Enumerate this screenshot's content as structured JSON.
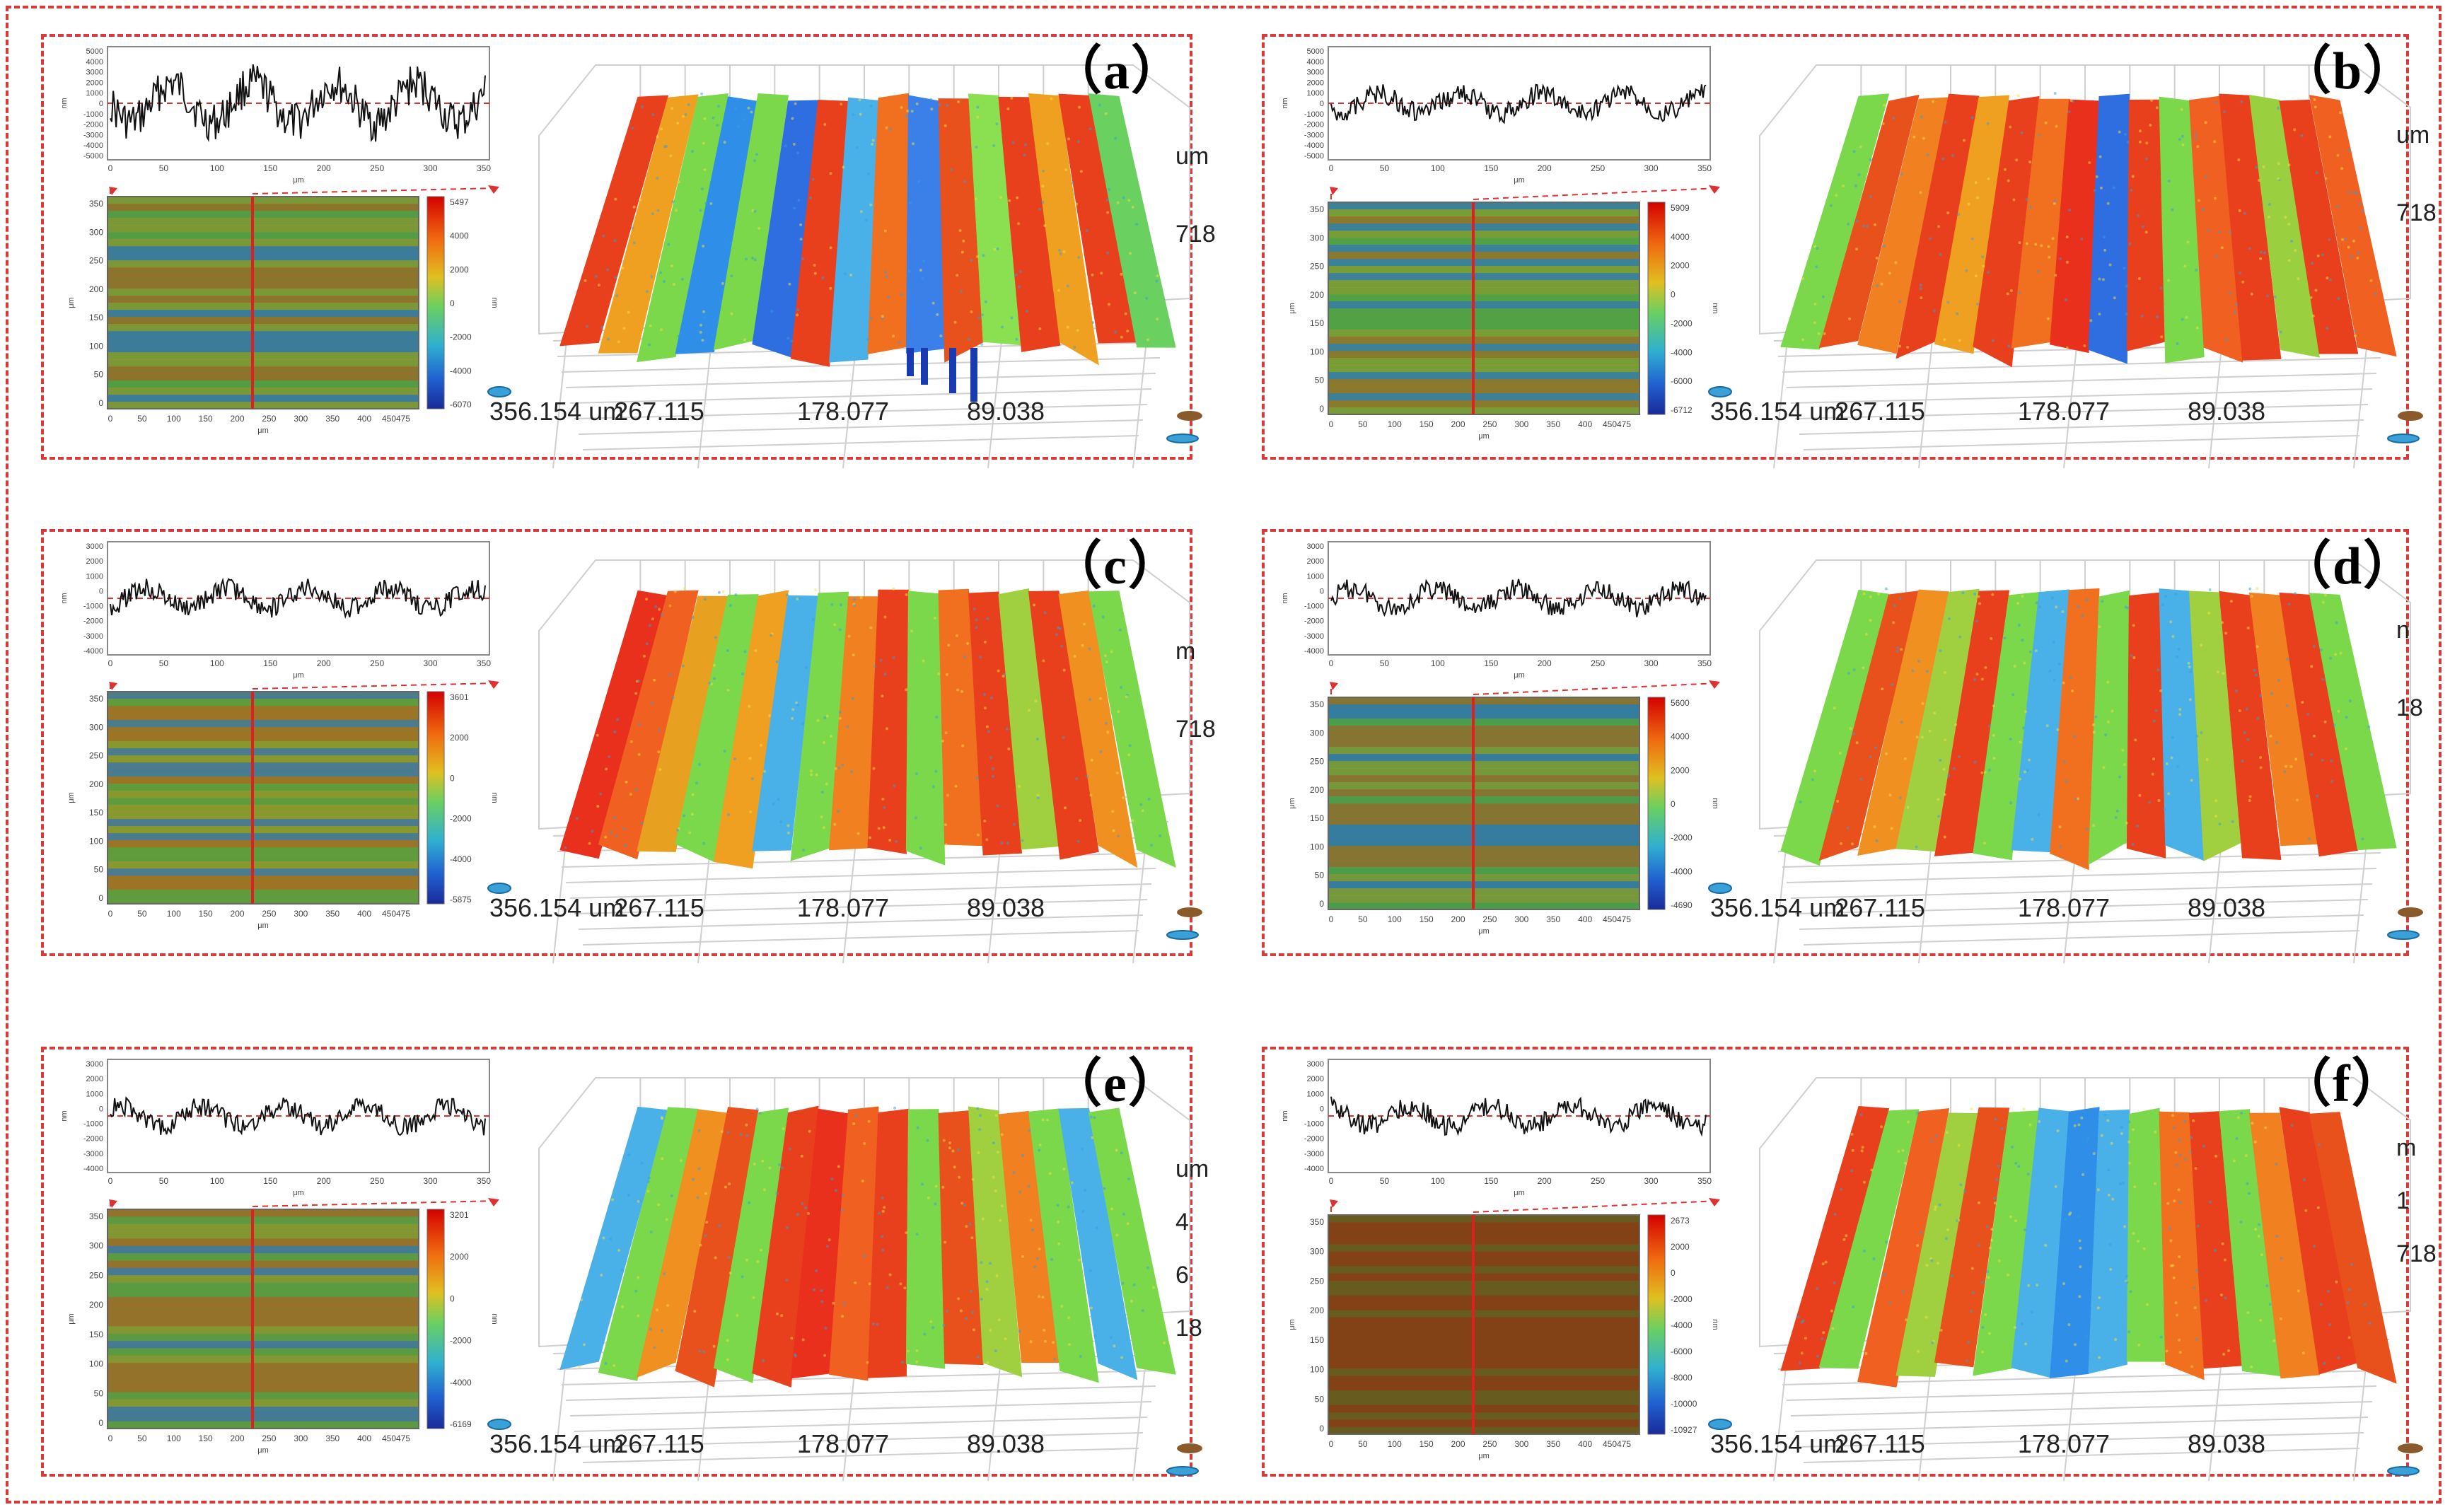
{
  "panels": [
    {
      "label": "（a）",
      "profile_yticks": [
        "5000",
        "4000",
        "3000",
        "2000",
        "1000",
        "0",
        "-1000",
        "-2000",
        "-3000",
        "-4000",
        "-5000"
      ],
      "profile_xticks": [
        "0",
        "50",
        "100",
        "150",
        "200",
        "250",
        "300",
        "350"
      ],
      "map_yticks": [
        "350",
        "300",
        "250",
        "200",
        "150",
        "100",
        "50",
        "0"
      ],
      "map_xticks": [
        "0",
        "50",
        "100",
        "150",
        "200",
        "250",
        "300",
        "350",
        "400",
        "450475"
      ],
      "colorbar": [
        "5497",
        "4000",
        "2000",
        "0",
        "-2000",
        "-4000",
        "-6070"
      ],
      "axis3d": [
        "356.154 um",
        "267.115",
        "178.077",
        "89.038"
      ],
      "side_labels": [
        "um",
        "718"
      ],
      "um_label": "μm",
      "nm_label": "nm"
    },
    {
      "label": "（b）",
      "profile_yticks": [
        "5000",
        "4000",
        "3000",
        "2000",
        "1000",
        "0",
        "-1000",
        "-2000",
        "-3000",
        "-4000",
        "-5000"
      ],
      "profile_xticks": [
        "0",
        "50",
        "100",
        "150",
        "200",
        "250",
        "300",
        "350"
      ],
      "map_yticks": [
        "350",
        "300",
        "250",
        "200",
        "150",
        "100",
        "50",
        "0"
      ],
      "map_xticks": [
        "0",
        "50",
        "100",
        "150",
        "200",
        "250",
        "300",
        "350",
        "400",
        "450475"
      ],
      "colorbar": [
        "5909",
        "4000",
        "2000",
        "0",
        "-2000",
        "-4000",
        "-6000",
        "-6712"
      ],
      "axis3d": [
        "356.154 um",
        "267.115",
        "178.077",
        "89.038"
      ],
      "side_labels": [
        "um",
        "718"
      ],
      "um_label": "μm",
      "nm_label": "nm"
    },
    {
      "label": "（c）",
      "profile_yticks": [
        "3000",
        "2000",
        "1000",
        "0",
        "-1000",
        "-2000",
        "-3000",
        "-4000"
      ],
      "profile_xticks": [
        "0",
        "50",
        "100",
        "150",
        "200",
        "250",
        "300",
        "350"
      ],
      "map_yticks": [
        "350",
        "300",
        "250",
        "200",
        "150",
        "100",
        "50",
        "0"
      ],
      "map_xticks": [
        "0",
        "50",
        "100",
        "150",
        "200",
        "250",
        "300",
        "350",
        "400",
        "450475"
      ],
      "colorbar": [
        "3601",
        "2000",
        "0",
        "-2000",
        "-4000",
        "-5875"
      ],
      "axis3d": [
        "356.154 um",
        "267.115",
        "178.077",
        "89.038"
      ],
      "side_labels": [
        "m",
        "718"
      ],
      "um_label": "μm",
      "nm_label": "nm"
    },
    {
      "label": "（d）",
      "profile_yticks": [
        "3000",
        "2000",
        "1000",
        "0",
        "-1000",
        "-2000",
        "-3000",
        "-4000"
      ],
      "profile_xticks": [
        "0",
        "50",
        "100",
        "150",
        "200",
        "250",
        "300",
        "350"
      ],
      "map_yticks": [
        "350",
        "300",
        "250",
        "200",
        "150",
        "100",
        "50",
        "0"
      ],
      "map_xticks": [
        "0",
        "50",
        "100",
        "150",
        "200",
        "250",
        "300",
        "350",
        "400",
        "450475"
      ],
      "colorbar": [
        "5600",
        "4000",
        "2000",
        "0",
        "-2000",
        "-4000",
        "-4690"
      ],
      "axis3d": [
        "356.154 um",
        "267.115",
        "178.077",
        "89.038"
      ],
      "side_labels": [
        "n",
        "18"
      ],
      "um_label": "μm",
      "nm_label": "nm"
    },
    {
      "label": "（e）",
      "profile_yticks": [
        "3000",
        "2000",
        "1000",
        "0",
        "-1000",
        "-2000",
        "-3000",
        "-4000"
      ],
      "profile_xticks": [
        "0",
        "50",
        "100",
        "150",
        "200",
        "250",
        "300",
        "350"
      ],
      "map_yticks": [
        "350",
        "300",
        "250",
        "200",
        "150",
        "100",
        "50",
        "0"
      ],
      "map_xticks": [
        "0",
        "50",
        "100",
        "150",
        "200",
        "250",
        "300",
        "350",
        "400",
        "450475"
      ],
      "colorbar": [
        "3201",
        "2000",
        "0",
        "-2000",
        "-4000",
        "-6169"
      ],
      "axis3d": [
        "356.154 um",
        "267.115",
        "178.077",
        "89.038"
      ],
      "side_labels": [
        "um",
        "4",
        "6",
        "18"
      ],
      "um_label": "μm",
      "nm_label": "nm"
    },
    {
      "label": "（f）",
      "profile_yticks": [
        "3000",
        "2000",
        "1000",
        "0",
        "-1000",
        "-2000",
        "-3000",
        "-4000"
      ],
      "profile_xticks": [
        "0",
        "50",
        "100",
        "150",
        "200",
        "250",
        "300",
        "350"
      ],
      "map_yticks": [
        "350",
        "300",
        "250",
        "200",
        "150",
        "100",
        "50",
        "0"
      ],
      "map_xticks": [
        "0",
        "50",
        "100",
        "150",
        "200",
        "250",
        "300",
        "350",
        "400",
        "450475"
      ],
      "colorbar": [
        "2673",
        "2000",
        "0",
        "-2000",
        "-4000",
        "-6000",
        "-8000",
        "-10000",
        "-10927"
      ],
      "axis3d": [
        "356.154 um",
        "267.115",
        "178.077",
        "89.038"
      ],
      "side_labels": [
        "m",
        "1",
        "718"
      ],
      "um_label": "μm",
      "nm_label": "nm"
    }
  ]
}
